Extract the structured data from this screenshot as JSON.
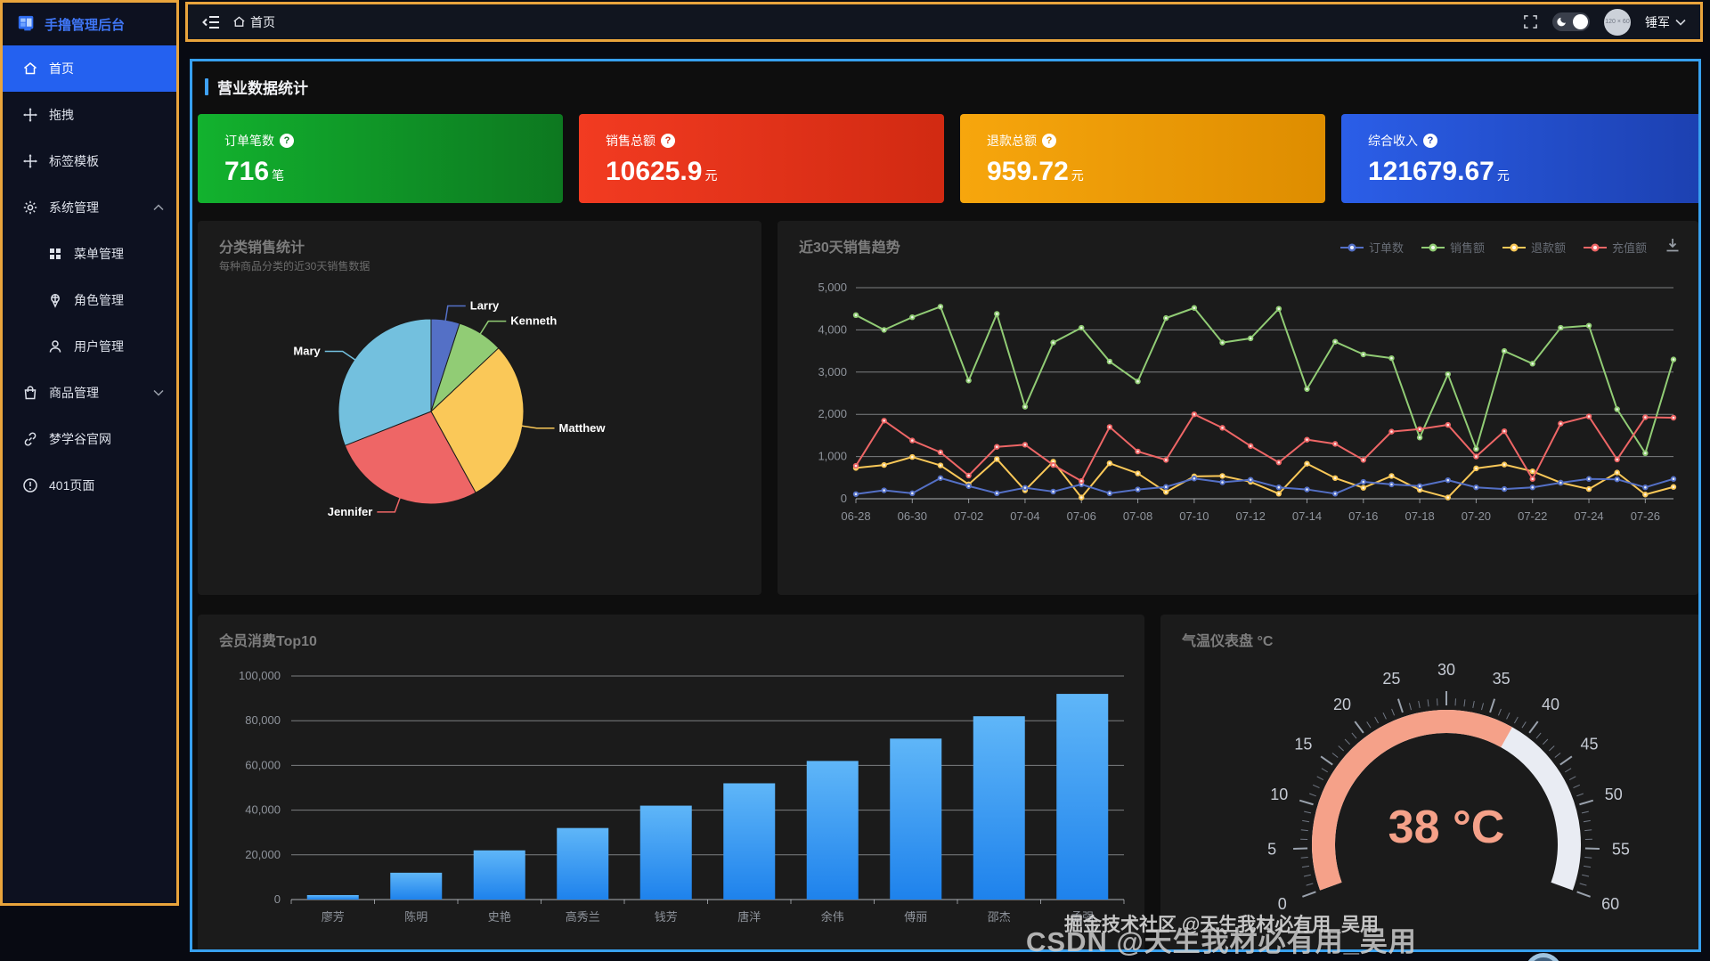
{
  "app": {
    "title": "手撸管理后台"
  },
  "sidebar": {
    "items": [
      {
        "key": "home",
        "label": "首页",
        "icon": "home-icon",
        "active": true
      },
      {
        "key": "drag",
        "label": "拖拽",
        "icon": "move-icon"
      },
      {
        "key": "label-template",
        "label": "标签模板",
        "icon": "move-icon"
      },
      {
        "key": "system-management",
        "label": "系统管理",
        "icon": "gear-icon",
        "chevron": "up"
      },
      {
        "key": "menu-management",
        "label": "菜单管理",
        "icon": "grid-icon",
        "indent": true
      },
      {
        "key": "role-management",
        "label": "角色管理",
        "icon": "badge-icon",
        "indent": true
      },
      {
        "key": "user-management",
        "label": "用户管理",
        "icon": "user-icon",
        "indent": true
      },
      {
        "key": "product-management",
        "label": "商品管理",
        "icon": "bag-icon",
        "chevron": "down"
      },
      {
        "key": "mxg-site",
        "label": "梦学谷官网",
        "icon": "link-icon"
      },
      {
        "key": "page-401",
        "label": "401页面",
        "icon": "alert-icon"
      }
    ]
  },
  "header": {
    "breadcrumb_home": "首页",
    "username": "锤军",
    "avatar_placeholder": "120 × 60"
  },
  "section": {
    "title": "营业数据统计"
  },
  "stat_cards": [
    {
      "key": "orders",
      "label": "订单笔数",
      "value": "716",
      "unit": "笔",
      "gradient": [
        "#12b22e",
        "#0d7820"
      ]
    },
    {
      "key": "sales",
      "label": "销售总额",
      "value": "10625.9",
      "unit": "元",
      "gradient": [
        "#f23b21",
        "#d12a12"
      ]
    },
    {
      "key": "refund",
      "label": "退款总额",
      "value": "959.72",
      "unit": "元",
      "gradient": [
        "#f7a60d",
        "#de8d00"
      ]
    },
    {
      "key": "income",
      "label": "综合收入",
      "value": "121679.67",
      "unit": "元",
      "gradient": [
        "#2b5ee8",
        "#1c40b0"
      ]
    }
  ],
  "colors": {
    "sidebar_active": "#2461f0",
    "frame_yellow": "#e9a43c",
    "frame_blue": "#37a0ef",
    "palette": [
      "#5470c6",
      "#91cc75",
      "#fac858",
      "#ee6666",
      "#73c0de"
    ]
  },
  "chart_data": [
    {
      "type": "pie",
      "title": "分类销售统计",
      "subtitle": "每种商品分类的近30天销售数据",
      "labels": [
        "Larry",
        "Kenneth",
        "Matthew",
        "Jennifer",
        "Mary"
      ],
      "values": [
        5,
        8,
        29,
        27,
        31
      ],
      "colors": [
        "#5470c6",
        "#91cc75",
        "#fac858",
        "#ee6666",
        "#73c0de"
      ],
      "legend_position": "none"
    },
    {
      "type": "line",
      "title": "近30天销售趋势",
      "x": [
        "06-28",
        "06-29",
        "06-30",
        "07-01",
        "07-02",
        "07-03",
        "07-04",
        "07-05",
        "07-06",
        "07-07",
        "07-08",
        "07-09",
        "07-10",
        "07-11",
        "07-12",
        "07-13",
        "07-14",
        "07-15",
        "07-16",
        "07-17",
        "07-18",
        "07-19",
        "07-20",
        "07-21",
        "07-22",
        "07-23",
        "07-24",
        "07-25",
        "07-26",
        "07-27"
      ],
      "x_label_step": 2,
      "ylim": [
        0,
        5000
      ],
      "yticks": [
        0,
        1000,
        2000,
        3000,
        4000,
        5000
      ],
      "ytick_labels": [
        "0",
        "1,000",
        "2,000",
        "3,000",
        "4,000",
        "5,000"
      ],
      "grid": true,
      "legend_position": "top-right",
      "series": [
        {
          "name": "订单数",
          "color": "#5470c6",
          "values": [
            110,
            200,
            130,
            490,
            300,
            130,
            260,
            170,
            340,
            130,
            220,
            280,
            480,
            390,
            450,
            270,
            220,
            120,
            400,
            340,
            300,
            440,
            270,
            230,
            270,
            380,
            470,
            460,
            270,
            470
          ]
        },
        {
          "name": "销售额",
          "color": "#91cc75",
          "values": [
            4350,
            4000,
            4300,
            4550,
            2800,
            4380,
            2180,
            3700,
            4050,
            3250,
            2780,
            4280,
            4520,
            3700,
            3800,
            4500,
            2600,
            3720,
            3420,
            3330,
            1450,
            2950,
            1180,
            3500,
            3200,
            4050,
            4100,
            2120,
            1080,
            3300
          ]
        },
        {
          "name": "退款额",
          "color": "#fac858",
          "values": [
            730,
            800,
            990,
            790,
            340,
            940,
            200,
            880,
            30,
            840,
            600,
            160,
            530,
            540,
            400,
            120,
            830,
            490,
            260,
            540,
            210,
            30,
            720,
            810,
            650,
            380,
            230,
            620,
            100,
            280
          ]
        },
        {
          "name": "充值额",
          "color": "#ee6666",
          "values": [
            780,
            1850,
            1380,
            1100,
            550,
            1230,
            1280,
            800,
            420,
            1700,
            1120,
            920,
            2000,
            1680,
            1250,
            860,
            1400,
            1300,
            920,
            1590,
            1650,
            1750,
            1000,
            1600,
            470,
            1780,
            1950,
            930,
            1930,
            1920
          ]
        }
      ]
    },
    {
      "type": "bar",
      "title": "会员消费Top10",
      "categories": [
        "廖芳",
        "陈明",
        "史艳",
        "高秀兰",
        "钱芳",
        "唐洋",
        "余伟",
        "傅丽",
        "邵杰",
        "孟强"
      ],
      "values": [
        2000,
        12000,
        22000,
        32000,
        42000,
        52000,
        62000,
        72000,
        82000,
        92000
      ],
      "ylim": [
        0,
        100000
      ],
      "yticks": [
        0,
        20000,
        40000,
        60000,
        80000,
        100000
      ],
      "ytick_labels": [
        "0",
        "20,000",
        "40,000",
        "60,000",
        "80,000",
        "100,000"
      ],
      "bar_gradient": [
        "#5fb6f8",
        "#1e82ec"
      ],
      "grid": true
    },
    {
      "type": "gauge",
      "title": "气温仪表盘 °C",
      "value": 38,
      "display": "38 °C",
      "min": 0,
      "max": 60,
      "major_ticks": [
        0,
        5,
        10,
        15,
        20,
        25,
        30,
        35,
        40,
        45,
        50,
        55,
        60
      ],
      "progress_color": "#f5a189",
      "track_color": "#e9ecf3",
      "value_color": "#f5a189"
    }
  ],
  "watermark": {
    "line1": "掘金技术社区 @天生我材必有用_吴用",
    "line2": "CSDN @天生我材必有用_吴用"
  }
}
